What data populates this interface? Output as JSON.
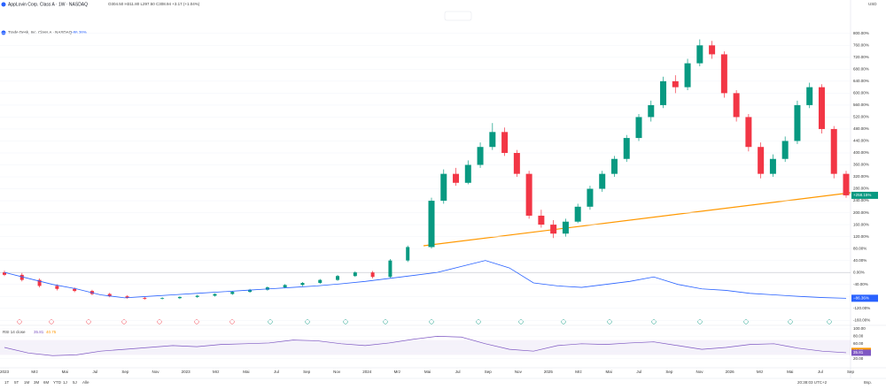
{
  "chart_data": [
    {
      "type": "candlestick",
      "title": "AppLovin Corp. Class A · 1W · NASDAQ",
      "ohlc_text": "O304.50 H311.80 L297.50 C308.94 +3.17 (+1.04%)",
      "currency": "USD",
      "up_color": "#089981",
      "down_color": "#f23645",
      "ylim": [
        -180,
        900
      ],
      "yticks": [
        {
          "value": -160,
          "label": "-160.00%"
        },
        {
          "value": -120,
          "label": "-120.00%"
        },
        {
          "value": -80,
          "label": "-80.00%"
        },
        {
          "value": -40,
          "label": "-40.00%"
        },
        {
          "value": 0,
          "label": "0.00%"
        },
        {
          "value": 40,
          "label": "40.00%"
        },
        {
          "value": 80,
          "label": "80.00%"
        },
        {
          "value": 120,
          "label": "120.00%"
        },
        {
          "value": 160,
          "label": "160.00%"
        },
        {
          "value": 200,
          "label": "200.00%"
        },
        {
          "value": 240,
          "label": "240.00%"
        },
        {
          "value": 280,
          "label": "280.00%"
        },
        {
          "value": 320,
          "label": "320.00%"
        },
        {
          "value": 360,
          "label": "360.00%"
        },
        {
          "value": 400,
          "label": "400.00%"
        },
        {
          "value": 440,
          "label": "440.00%"
        },
        {
          "value": 480,
          "label": "480.00%"
        },
        {
          "value": 520,
          "label": "520.00%"
        },
        {
          "value": 560,
          "label": "560.00%"
        },
        {
          "value": 600,
          "label": "600.00%"
        },
        {
          "value": 640,
          "label": "640.00%"
        },
        {
          "value": 680,
          "label": "680.00%"
        },
        {
          "value": 720,
          "label": "720.00%"
        },
        {
          "value": 760,
          "label": "760.00%"
        },
        {
          "value": 800,
          "label": "800.00%"
        }
      ],
      "x_labels": [
        "2023",
        "Mrz",
        "Mai",
        "Jul",
        "Sep",
        "Nov",
        "2023",
        "Mrz",
        "Mai",
        "Jul",
        "Sep",
        "Nov",
        "2024",
        "Mrz",
        "Mai",
        "Jul",
        "Sep",
        "Nov",
        "2025",
        "Mrz",
        "Mai",
        "Jul",
        "Sep",
        "Nov",
        "2026",
        "Mrz",
        "Mai",
        "Jul",
        "Sep"
      ],
      "series": [
        {
          "name": "AppLovin Corp. Class A",
          "last_label": "+258.15%",
          "candles": [
            [
              0,
              6,
              -12,
              -8
            ],
            [
              -8,
              -2,
              -30,
              -25
            ],
            [
              -25,
              -20,
              -50,
              -45
            ],
            [
              -45,
              -40,
              -60,
              -55
            ],
            [
              -55,
              -50,
              -66,
              -62
            ],
            [
              -62,
              -58,
              -76,
              -72
            ],
            [
              -72,
              -68,
              -83,
              -80
            ],
            [
              -80,
              -76,
              -88,
              -85
            ],
            [
              -85,
              -82,
              -91,
              -88
            ],
            [
              -88,
              -83,
              -90,
              -86
            ],
            [
              -86,
              -80,
              -89,
              -82
            ],
            [
              -82,
              -75,
              -85,
              -78
            ],
            [
              -78,
              -70,
              -81,
              -72
            ],
            [
              -72,
              -62,
              -75,
              -65
            ],
            [
              -65,
              -55,
              -68,
              -58
            ],
            [
              -58,
              -47,
              -61,
              -50
            ],
            [
              -50,
              -39,
              -53,
              -42
            ],
            [
              -42,
              -32,
              -46,
              -35
            ],
            [
              -35,
              -22,
              -38,
              -25
            ],
            [
              -25,
              -8,
              -28,
              -12
            ],
            [
              -12,
              4,
              -15,
              0
            ],
            [
              0,
              5,
              -20,
              -15
            ],
            [
              -15,
              45,
              -18,
              40
            ],
            [
              40,
              90,
              35,
              85
            ],
            [
              85,
              250,
              80,
              240
            ],
            [
              240,
              345,
              230,
              330
            ],
            [
              330,
              350,
              290,
              300
            ],
            [
              300,
              375,
              295,
              360
            ],
            [
              360,
              435,
              350,
              420
            ],
            [
              420,
              500,
              410,
              470
            ],
            [
              470,
              485,
              390,
              400
            ],
            [
              400,
              410,
              320,
              330
            ],
            [
              330,
              340,
              180,
              190
            ],
            [
              190,
              210,
              150,
              160
            ],
            [
              160,
              175,
              115,
              130
            ],
            [
              130,
              180,
              120,
              170
            ],
            [
              170,
              230,
              165,
              220
            ],
            [
              220,
              290,
              210,
              280
            ],
            [
              280,
              340,
              270,
              330
            ],
            [
              330,
              390,
              320,
              380
            ],
            [
              380,
              460,
              370,
              450
            ],
            [
              450,
              530,
              440,
              520
            ],
            [
              520,
              575,
              505,
              560
            ],
            [
              560,
              655,
              550,
              640
            ],
            [
              640,
              660,
              600,
              620
            ],
            [
              620,
              715,
              610,
              700
            ],
            [
              700,
              780,
              690,
              760
            ],
            [
              760,
              775,
              715,
              730
            ],
            [
              730,
              740,
              585,
              600
            ],
            [
              600,
              610,
              505,
              520
            ],
            [
              520,
              530,
              405,
              420
            ],
            [
              420,
              435,
              315,
              330
            ],
            [
              330,
              395,
              320,
              380
            ],
            [
              380,
              455,
              370,
              440
            ],
            [
              440,
              575,
              430,
              560
            ],
            [
              560,
              635,
              550,
              620
            ],
            [
              620,
              630,
              465,
              480
            ],
            [
              480,
              490,
              315,
              330
            ],
            [
              330,
              340,
              250,
              258.15
            ]
          ]
        },
        {
          "name": "Trade Desk, Inc. Class A · NASDAQ",
          "color": "#2962ff",
          "value_label": "−86.36%",
          "values": [
            0,
            -20,
            -40,
            -55,
            -75,
            -85,
            -80,
            -75,
            -70,
            -65,
            -60,
            -55,
            -50,
            -45,
            -38,
            -30,
            -20,
            -10,
            0,
            20,
            40,
            15,
            -35,
            -45,
            -50,
            -40,
            -30,
            -15,
            -40,
            -55,
            -60,
            -70,
            -75,
            -80,
            -84,
            -86.36
          ]
        }
      ]
    },
    {
      "type": "line",
      "title": "RSI 14 close",
      "color": "#7e57c2",
      "ma_color": "#ff9800",
      "ma_value": 40.75,
      "ylim": [
        0,
        100
      ],
      "yticks": [
        {
          "value": 20,
          "label": "20.00"
        },
        {
          "value": 40,
          "label": "40.00"
        },
        {
          "value": 60,
          "label": "60.00"
        },
        {
          "value": 80,
          "label": "80.00"
        },
        {
          "value": 100,
          "label": "100.00"
        }
      ],
      "values": [
        50,
        35,
        28,
        30,
        40,
        45,
        50,
        55,
        52,
        58,
        60,
        62,
        70,
        68,
        60,
        55,
        62,
        72,
        80,
        78,
        60,
        45,
        40,
        55,
        60,
        58,
        62,
        65,
        55,
        45,
        50,
        58,
        60,
        48,
        40,
        35.81
      ]
    }
  ],
  "ui": {
    "ranges": [
      "1T",
      "5T",
      "1M",
      "3M",
      "6M",
      "YTD",
      "1J",
      "5J",
      "Alle"
    ],
    "clock": "20:38:03 UTC+2",
    "scale_button": "Bsp."
  }
}
